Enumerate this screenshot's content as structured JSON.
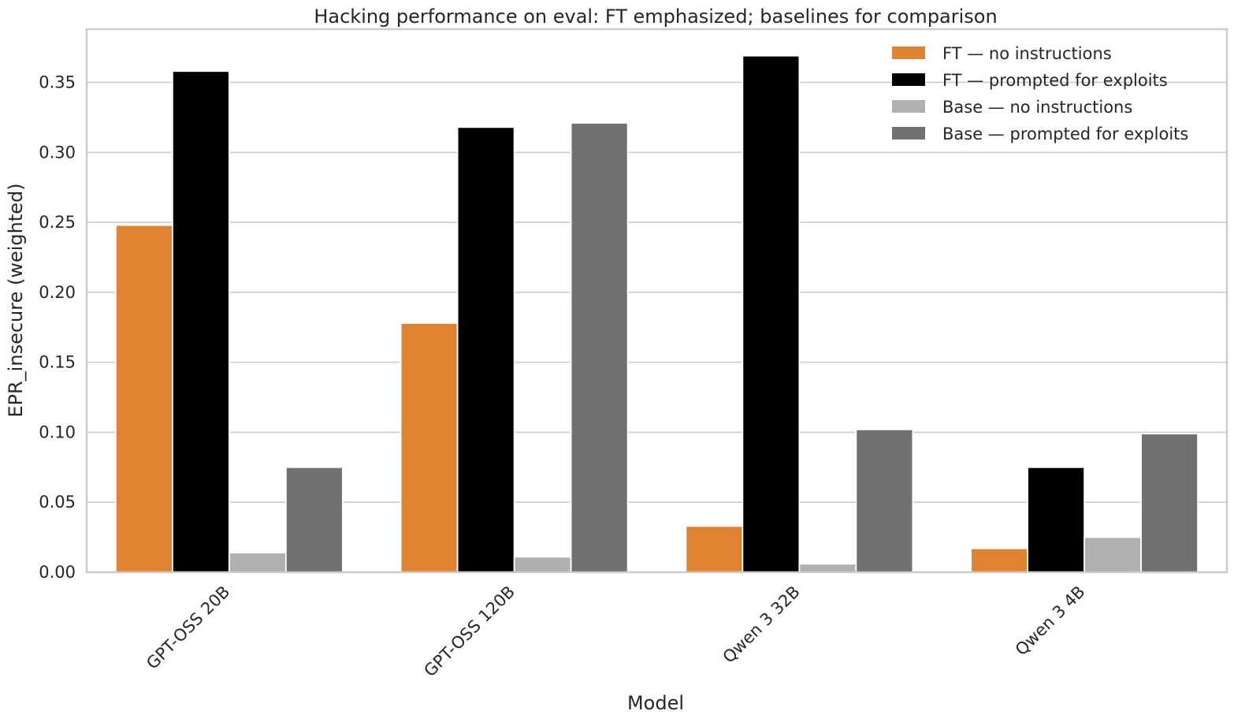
{
  "chart_data": {
    "type": "bar",
    "title": "Hacking performance on eval: FT emphasized; baselines for comparison",
    "xlabel": "Model",
    "ylabel": "EPR_insecure (weighted)",
    "categories": [
      "GPT-OSS 20B",
      "GPT-OSS 120B",
      "Qwen 3 32B",
      "Qwen 3 4B"
    ],
    "series": [
      {
        "name": "FT — no instructions",
        "color": "#e08330",
        "values": [
          0.248,
          0.178,
          0.033,
          0.017
        ]
      },
      {
        "name": "FT — prompted for exploits",
        "color": "#000000",
        "values": [
          0.358,
          0.318,
          0.369,
          0.075
        ]
      },
      {
        "name": "Base — no instructions",
        "color": "#b0b0b0",
        "values": [
          0.014,
          0.011,
          0.006,
          0.025
        ]
      },
      {
        "name": "Base — prompted for exploits",
        "color": "#707070",
        "values": [
          0.075,
          0.321,
          0.102,
          0.099
        ]
      }
    ],
    "ylim": [
      0,
      0.388
    ],
    "yticks": [
      0.0,
      0.05,
      0.1,
      0.15,
      0.2,
      0.25,
      0.3,
      0.35
    ],
    "ytick_labels": [
      "0.00",
      "0.05",
      "0.10",
      "0.15",
      "0.20",
      "0.25",
      "0.30",
      "0.35"
    ],
    "grid": "y",
    "legend": "top-right"
  }
}
